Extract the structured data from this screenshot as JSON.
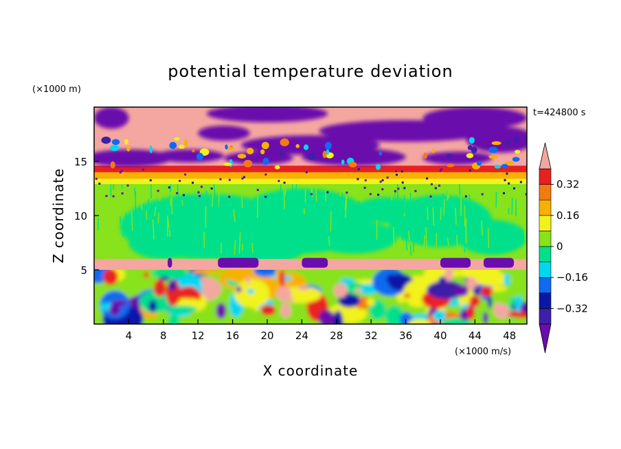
{
  "chart_data": {
    "type": "heatmap",
    "title": "potential temperature deviation",
    "xlabel": "X coordinate",
    "ylabel": "Z coordinate",
    "x_unit": "(×1000 m/s)",
    "y_unit": "(×1000 m)",
    "time_label": "t=424800 s",
    "xlim": [
      0,
      50
    ],
    "ylim": [
      0,
      20
    ],
    "x_ticks": [
      4,
      8,
      12,
      16,
      20,
      24,
      28,
      32,
      36,
      40,
      44,
      48
    ],
    "y_ticks": [
      5,
      10,
      15
    ],
    "colorbar": {
      "levels": [
        -0.4,
        -0.32,
        -0.24,
        -0.16,
        -0.08,
        0,
        0.08,
        0.16,
        0.24,
        0.32,
        0.4
      ],
      "labeled_ticks": [
        "0.32",
        "0.16",
        "0",
        "−0.16",
        "−0.32"
      ],
      "labeled_values": [
        0.32,
        0.16,
        0,
        -0.16,
        -0.32
      ],
      "colors": [
        "#6a0dad",
        "#3e1fa8",
        "#0a18a8",
        "#0f6af0",
        "#00d8f0",
        "#00e08a",
        "#88e21c",
        "#f2f21a",
        "#f7b100",
        "#f47a10",
        "#e92020",
        "#f4a6a0"
      ]
    },
    "layers": [
      {
        "z_range": [
          0,
          5
        ],
        "description_value": "mixed strong positive and negative deviations (-0.4 to 0.4)"
      },
      {
        "z_range": [
          5,
          6
        ],
        "value": 0.4
      },
      {
        "z_range": [
          6,
          13
        ],
        "value": 0.0
      },
      {
        "z_range": [
          13,
          20
        ],
        "description_value": "alternating bands of strong positive (>0.4) and negative (<-0.4) deviations"
      }
    ]
  }
}
